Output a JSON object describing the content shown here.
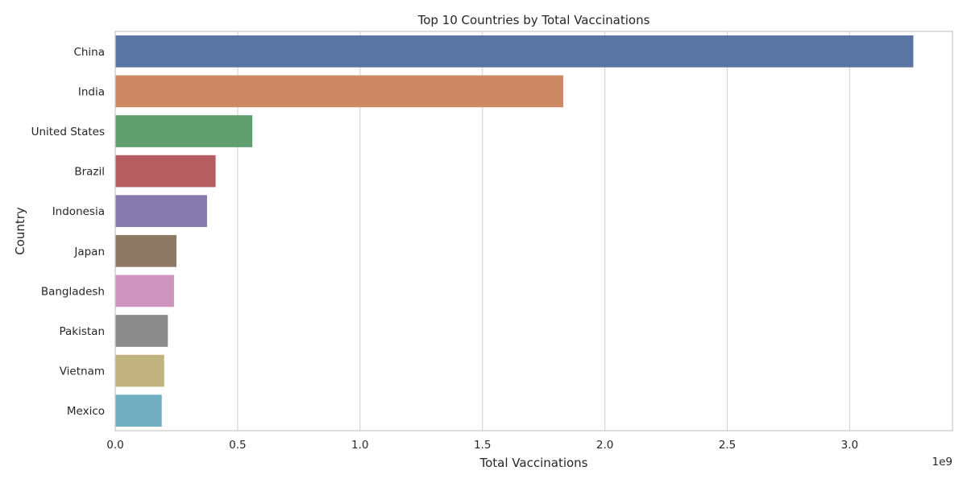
{
  "chart_data": {
    "type": "bar",
    "orientation": "horizontal",
    "title": "Top 10 Countries by Total Vaccinations",
    "xlabel": "Total Vaccinations",
    "ylabel": "Country",
    "offset_text": "1e9",
    "categories": [
      "China",
      "India",
      "United States",
      "Brazil",
      "Indonesia",
      "Japan",
      "Bangladesh",
      "Pakistan",
      "Vietnam",
      "Mexico"
    ],
    "values": [
      3.26,
      1.83,
      0.56,
      0.41,
      0.375,
      0.25,
      0.24,
      0.215,
      0.2,
      0.19
    ],
    "value_scale": 1000000000,
    "xlim": [
      0,
      3.42
    ],
    "xticks": [
      0.0,
      0.5,
      1.0,
      1.5,
      2.0,
      2.5,
      3.0
    ],
    "xtick_labels": [
      "0.0",
      "0.5",
      "1.0",
      "1.5",
      "2.0",
      "2.5",
      "3.0"
    ],
    "grid": "vertical",
    "colors": [
      "#5875a4",
      "#cc8963",
      "#5f9e6e",
      "#b55d60",
      "#857aab",
      "#8d7866",
      "#d095bf",
      "#8c8c8c",
      "#c1b37f",
      "#71aec0"
    ]
  }
}
